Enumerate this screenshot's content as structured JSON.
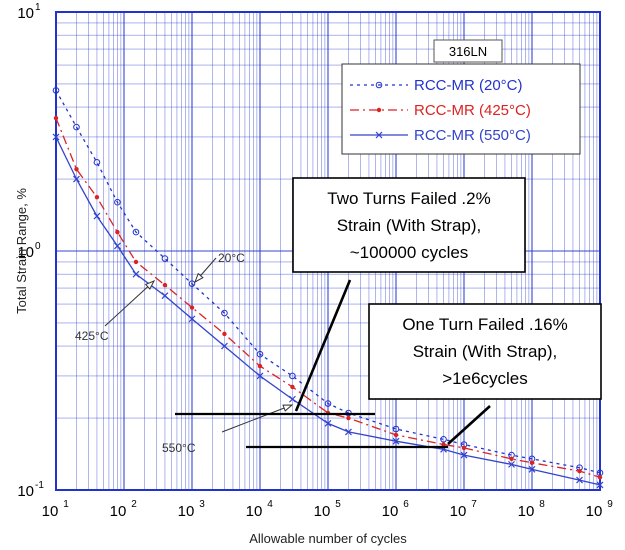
{
  "chart_data": {
    "type": "line",
    "xscale": "log",
    "yscale": "log",
    "xlim": [
      10,
      1000000000
    ],
    "ylim": [
      0.1,
      10
    ],
    "xlabel": "Allowable number of cycles",
    "ylabel": "Total Strain Range, %",
    "grid": true,
    "legend_position": "top-right",
    "x_tick_labels": [
      "10",
      "10",
      "10",
      "10",
      "10",
      "10",
      "10",
      "10",
      "10"
    ],
    "x_tick_exponents": [
      "1",
      "2",
      "3",
      "4",
      "5",
      "6",
      "7",
      "8",
      "9"
    ],
    "y_tick_labels": [
      "10",
      "10",
      "10"
    ],
    "y_tick_exponents": [
      "-1",
      "0",
      "1"
    ],
    "material_label": "316LN",
    "series": [
      {
        "name": "RCC-MR (20°C)",
        "color": "#2233cc",
        "line_style": "dotted",
        "marker": "circle",
        "x": [
          10,
          20,
          40,
          80,
          150,
          400,
          1000,
          3000,
          10000,
          30000,
          100000,
          200000,
          1000000,
          5000000,
          10000000,
          50000000,
          100000000,
          500000000,
          1000000000
        ],
        "y": [
          4.7,
          3.3,
          2.35,
          1.6,
          1.2,
          0.93,
          0.73,
          0.55,
          0.37,
          0.3,
          0.23,
          0.21,
          0.18,
          0.163,
          0.155,
          0.14,
          0.135,
          0.124,
          0.118
        ]
      },
      {
        "name": "RCC-MR (425°C)",
        "color": "#dd2222",
        "line_style": "dash-dot",
        "marker": "dot",
        "x": [
          10,
          20,
          40,
          80,
          150,
          400,
          1000,
          3000,
          10000,
          30000,
          100000,
          200000,
          1000000,
          5000000,
          10000000,
          50000000,
          100000000,
          500000000,
          1000000000
        ],
        "y": [
          3.6,
          2.2,
          1.68,
          1.2,
          0.9,
          0.72,
          0.58,
          0.45,
          0.33,
          0.27,
          0.21,
          0.2,
          0.17,
          0.155,
          0.15,
          0.135,
          0.13,
          0.12,
          0.113
        ]
      },
      {
        "name": "RCC-MR (550°C)",
        "color": "#3344cc",
        "line_style": "solid",
        "marker": "x",
        "x": [
          10,
          20,
          40,
          80,
          150,
          400,
          1000,
          3000,
          10000,
          30000,
          100000,
          200000,
          1000000,
          5000000,
          10000000,
          50000000,
          100000000,
          500000000,
          1000000000
        ],
        "y": [
          3.0,
          2.0,
          1.4,
          1.05,
          0.8,
          0.65,
          0.52,
          0.4,
          0.3,
          0.24,
          0.19,
          0.175,
          0.16,
          0.148,
          0.14,
          0.128,
          0.122,
          0.11,
          0.105
        ]
      }
    ],
    "curve_labels": [
      {
        "text": "20°C",
        "x": 1000,
        "y": 0.73
      },
      {
        "text": "425°C",
        "x": 400,
        "y": 0.72
      },
      {
        "text": "550°C",
        "x": 30000,
        "y": 0.22
      }
    ],
    "callouts": [
      {
        "lines": [
          "Two Turns Failed .2%",
          "Strain (With Strap),",
          "~100000 cycles"
        ],
        "reference_y": 0.2,
        "reference_x_range": [
          10000,
          400000
        ],
        "pointer_to_x": 30000
      },
      {
        "lines": [
          "One Turn Failed .16%",
          "Strain (With Strap),",
          ">1e6cycles"
        ],
        "reference_y": 0.155,
        "reference_x_range": [
          1000,
          5000000
        ],
        "pointer_to_x": 5000000
      }
    ]
  }
}
